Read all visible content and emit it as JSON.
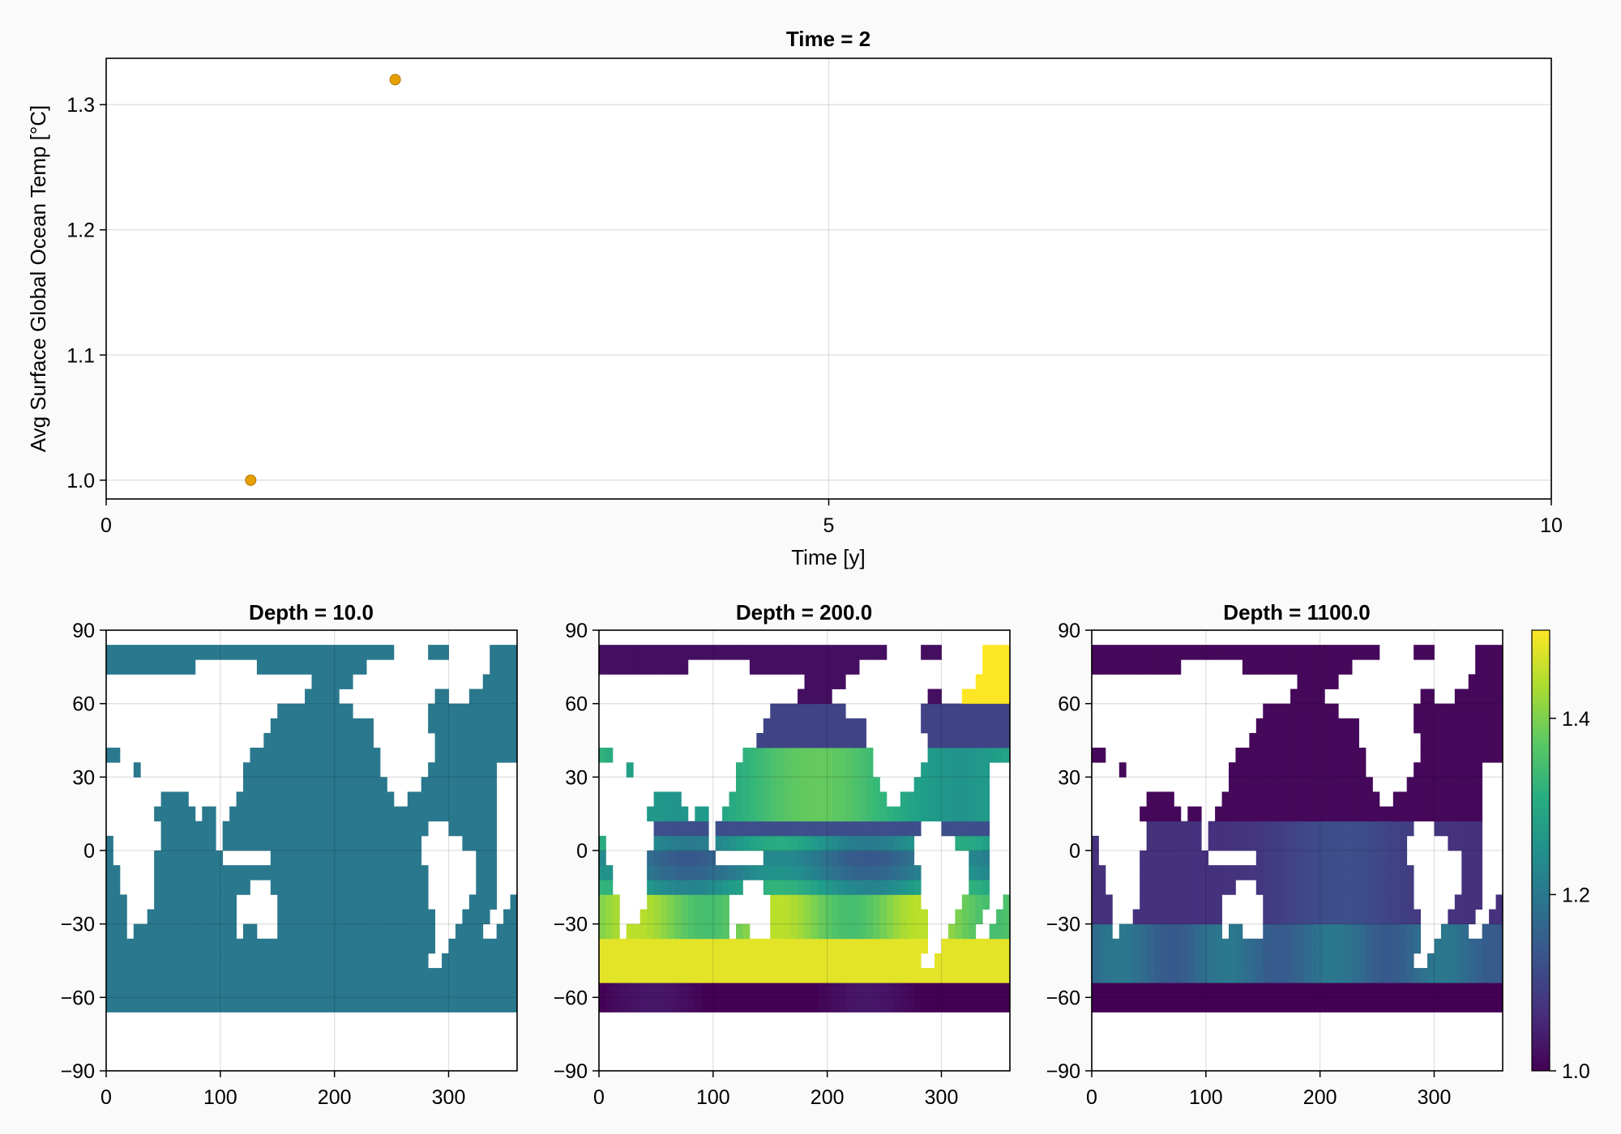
{
  "chart_data": [
    {
      "type": "scatter",
      "title": "Time = 2",
      "xlabel": "Time [y]",
      "ylabel": "Avg Surface Global Ocean Temp [°C]",
      "xlim": [
        0,
        10
      ],
      "ylim": [
        0.985,
        1.337
      ],
      "xticks": [
        "0",
        "5",
        "10"
      ],
      "yticks": [
        "1.0",
        "1.1",
        "1.2",
        "1.3"
      ],
      "grid": true,
      "marker_color": "#e69f00",
      "points": [
        {
          "x": 1,
          "y": 1.0
        },
        {
          "x": 2,
          "y": 1.32
        }
      ]
    },
    {
      "type": "heatmap",
      "title": "Depth = 10.0",
      "xlim": [
        0,
        360
      ],
      "ylim": [
        -90,
        90
      ],
      "xticks": [
        "0",
        "100",
        "200",
        "300"
      ],
      "yticks": [
        "90",
        "60",
        "30",
        "0",
        "−30",
        "−60",
        "−90"
      ],
      "field": "surface",
      "uniform_value": 1.2
    },
    {
      "type": "heatmap",
      "title": "Depth = 200.0",
      "xlim": [
        0,
        360
      ],
      "ylim": [
        -90,
        90
      ],
      "xticks": [
        "0",
        "100",
        "200",
        "300"
      ],
      "yticks": [
        "90",
        "60",
        "30",
        "0",
        "−30",
        "−60",
        "−90"
      ],
      "field": "thermocline"
    },
    {
      "type": "heatmap",
      "title": "Depth = 1100.0",
      "xlim": [
        0,
        360
      ],
      "ylim": [
        -90,
        90
      ],
      "xticks": [
        "0",
        "100",
        "200",
        "300"
      ],
      "yticks": [
        "90",
        "60",
        "30",
        "0",
        "−30",
        "−60",
        "−90"
      ],
      "field": "deep"
    }
  ],
  "colorbar": {
    "colormap": "viridis",
    "range": [
      1.0,
      1.5
    ],
    "ticks": [
      "1.0",
      "1.2",
      "1.4"
    ],
    "tick_values": [
      1.0,
      1.2,
      1.4
    ]
  }
}
